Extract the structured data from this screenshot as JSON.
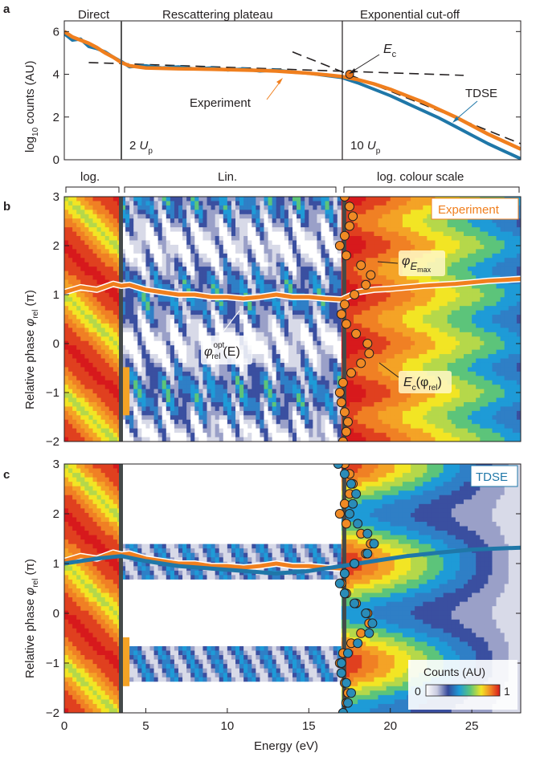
{
  "panels": {
    "a": {
      "letter": "a",
      "regions": [
        "Direct",
        "Rescattering plateau",
        "Exponential cut-off"
      ],
      "ylabel_main": "log",
      "ylabel_sub": "10",
      "ylabel_rest": " counts (AU)",
      "marker_2up_a": "2 ",
      "marker_2up_b": "U",
      "marker_2up_c": "p",
      "marker_10up_a": "10 ",
      "marker_10up_b": "U",
      "marker_10up_c": "p",
      "ec_label_main": "E",
      "ec_label_sub": "c",
      "experiment_label": "Experiment",
      "tdse_label": "TDSE"
    },
    "scale_bar": {
      "left": "log.",
      "mid": "Lin.",
      "right": "log. colour scale"
    },
    "b": {
      "letter": "b",
      "tag": "Experiment",
      "ylabel_a": "Relative phase ",
      "ylabel_phi": "φ",
      "ylabel_sub": "rel",
      "ylabel_b": " (π)",
      "ann_phiE_main": "φ",
      "ann_phiE_sub": "E",
      "ann_phiE_subsub": "max",
      "ann_opt_main": "φ",
      "ann_opt_sup": "opt",
      "ann_opt_sub": "rel",
      "ann_opt_rest": "(E)",
      "ann_ec_a": "E",
      "ann_ec_sub": "c",
      "ann_ec_b": "(φ",
      "ann_ec_sub2": "rel",
      "ann_ec_c": ")"
    },
    "c": {
      "letter": "c",
      "tag": "TDSE",
      "ylabel_a": "Relative phase ",
      "ylabel_phi": "φ",
      "ylabel_sub": "rel",
      "ylabel_b": " (π)",
      "colorbar_title": "Counts (AU)",
      "colorbar_min": "0",
      "colorbar_max": "1"
    },
    "xlabel": "Energy (eV)"
  },
  "chart_data": [
    {
      "panel": "a",
      "type": "line",
      "title": "",
      "xlabel": "",
      "ylabel": "log10 counts (AU)",
      "xlim": [
        0,
        28
      ],
      "ylim": [
        0,
        6.5
      ],
      "yticks": [
        0,
        2,
        4,
        6
      ],
      "vlines": [
        {
          "x": 3.5,
          "label": "2 Up"
        },
        {
          "x": 17.2,
          "label": "10 Up"
        }
      ],
      "series": [
        {
          "name": "Experiment",
          "color": "#f07f1e",
          "x": [
            0,
            0.5,
            1,
            1.5,
            2,
            2.5,
            3,
            3.5,
            4,
            5,
            6,
            7,
            8,
            9,
            10,
            11,
            12,
            13,
            14,
            15,
            16,
            17,
            18,
            19,
            20,
            21,
            22,
            23,
            24,
            25,
            26,
            27,
            28
          ],
          "y": [
            6.0,
            5.75,
            5.6,
            5.45,
            5.25,
            5.0,
            4.8,
            4.55,
            4.4,
            4.3,
            4.28,
            4.26,
            4.25,
            4.24,
            4.22,
            4.2,
            4.18,
            4.15,
            4.1,
            4.05,
            3.98,
            3.9,
            3.75,
            3.55,
            3.3,
            3.0,
            2.7,
            2.35,
            2.0,
            1.6,
            1.2,
            0.85,
            0.5
          ]
        },
        {
          "name": "TDSE",
          "color": "#1f77a8",
          "x": [
            0,
            0.5,
            1,
            1.5,
            2,
            2.5,
            3,
            3.5,
            4,
            5,
            6,
            7,
            8,
            9,
            10,
            11,
            12,
            13,
            14,
            15,
            16,
            17,
            18,
            19,
            20,
            21,
            22,
            23,
            24,
            25,
            26,
            27,
            28
          ],
          "y": [
            5.9,
            5.6,
            5.65,
            5.3,
            5.2,
            5.05,
            4.8,
            4.6,
            4.35,
            4.4,
            4.3,
            4.35,
            4.25,
            4.3,
            4.2,
            4.25,
            4.15,
            4.2,
            4.1,
            4.05,
            3.95,
            3.85,
            3.6,
            3.3,
            3.0,
            2.65,
            2.3,
            1.95,
            1.55,
            1.15,
            0.75,
            0.4,
            0.05
          ]
        }
      ],
      "dashed_fits": [
        {
          "x": [
            1.5,
            24.5
          ],
          "y": [
            4.55,
            3.95
          ]
        },
        {
          "x": [
            14,
            28
          ],
          "y": [
            5.05,
            0.75
          ]
        }
      ],
      "points": [
        {
          "name": "Ec",
          "x": 17.5,
          "y": 4.0
        }
      ]
    },
    {
      "panel": "b",
      "type": "heatmap",
      "xlim": [
        0,
        28
      ],
      "ylim": [
        -2,
        3
      ],
      "yticks": [
        -2,
        -1,
        0,
        1,
        2,
        3
      ],
      "colorscale": [
        "#ffffff",
        "#d4d6e4",
        "#3a4fa0",
        "#1e9bd7",
        "#5cc47a",
        "#f2e524",
        "#f08024",
        "#d7191c"
      ],
      "lines": [
        {
          "name": "φrel opt(E)",
          "color": "#f07f1e",
          "x": [
            0,
            1,
            2,
            3,
            3.5,
            4,
            5,
            6,
            7,
            8,
            9,
            10,
            11,
            12,
            13,
            14,
            15,
            16,
            17,
            18,
            19,
            20,
            21,
            22,
            23,
            24,
            25,
            26,
            27,
            28
          ],
          "y": [
            1.05,
            1.15,
            1.1,
            1.22,
            1.18,
            1.2,
            1.1,
            1.05,
            1.0,
            1.0,
            0.95,
            0.95,
            0.92,
            0.95,
            1.0,
            0.95,
            0.95,
            0.92,
            0.9,
            1.05,
            1.1,
            1.12,
            1.15,
            1.18,
            1.2,
            1.22,
            1.25,
            1.28,
            1.3,
            1.32
          ]
        }
      ],
      "points": {
        "name": "Ec(φrel)",
        "phase": [
          3.0,
          2.8,
          2.6,
          2.4,
          2.2,
          2.0,
          1.8,
          1.6,
          1.4,
          1.2,
          1.0,
          0.8,
          0.6,
          0.4,
          0.2,
          0.0,
          -0.2,
          -0.4,
          -0.6,
          -0.8,
          -1.0,
          -1.2,
          -1.4,
          -1.6,
          -1.8,
          -2.0
        ],
        "energy": [
          17.2,
          17.5,
          17.7,
          17.5,
          17.2,
          16.9,
          17.3,
          18.2,
          18.8,
          18.5,
          17.8,
          17.2,
          17.0,
          17.3,
          17.9,
          18.6,
          18.7,
          18.2,
          17.6,
          17.1,
          16.9,
          17.0,
          17.2,
          17.4,
          17.3,
          17.1
        ]
      }
    },
    {
      "panel": "c",
      "type": "heatmap",
      "xlim": [
        0,
        28
      ],
      "ylim": [
        -2,
        3
      ],
      "yticks": [
        -2,
        -1,
        0,
        1,
        2,
        3
      ],
      "xticks": [
        0,
        5,
        10,
        15,
        20,
        25
      ],
      "lines": [
        {
          "name": "TDSE optimum",
          "color": "#1f77a8",
          "x": [
            0,
            2,
            3.5,
            5,
            7,
            9,
            11,
            13,
            15,
            17,
            19,
            21,
            23,
            25,
            28
          ],
          "y": [
            1.0,
            1.1,
            1.15,
            1.05,
            0.95,
            0.9,
            0.85,
            0.8,
            0.85,
            0.95,
            1.05,
            1.15,
            1.22,
            1.28,
            1.32
          ]
        },
        {
          "name": "Experiment",
          "color": "#f07f1e",
          "x": [
            0,
            1,
            2,
            3,
            3.5,
            4,
            5,
            6,
            7,
            8,
            9,
            10,
            11,
            12,
            13,
            14,
            15,
            16,
            17
          ],
          "y": [
            1.05,
            1.15,
            1.1,
            1.22,
            1.18,
            1.2,
            1.1,
            1.05,
            1.0,
            1.0,
            0.95,
            0.95,
            0.92,
            0.95,
            1.0,
            0.95,
            0.95,
            0.92,
            0.9
          ]
        }
      ],
      "points_tdse": {
        "phase": [
          3.0,
          2.8,
          2.6,
          2.4,
          2.2,
          2.0,
          1.8,
          1.6,
          1.4,
          1.2,
          1.0,
          0.8,
          0.6,
          0.4,
          0.2,
          0.0,
          -0.2,
          -0.4,
          -0.6,
          -0.8,
          -1.0,
          -1.2,
          -1.4,
          -1.6,
          -1.8,
          -2.0
        ],
        "energy": [
          16.8,
          17.2,
          17.6,
          17.9,
          17.7,
          17.5,
          18.0,
          18.6,
          19.0,
          18.6,
          17.8,
          17.2,
          16.9,
          17.2,
          17.8,
          18.5,
          18.9,
          18.7,
          18.0,
          17.4,
          17.0,
          17.0,
          17.3,
          17.6,
          17.4,
          17.1
        ]
      }
    }
  ]
}
